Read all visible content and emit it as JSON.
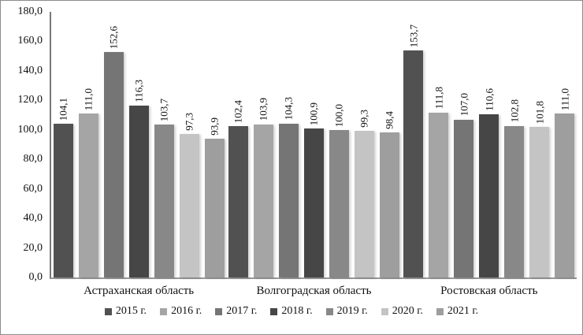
{
  "chart_data": {
    "type": "bar",
    "title": "",
    "xlabel": "",
    "ylabel": "",
    "categories": [
      "Астраханская область",
      "Волгоградская область",
      "Ростовская область"
    ],
    "series": [
      {
        "name": "2015 г.",
        "color": "#515151",
        "values": [
          104.1,
          102.4,
          153.7
        ]
      },
      {
        "name": "2016 г.",
        "color": "#a5a5a5",
        "values": [
          111.0,
          103.9,
          111.8
        ]
      },
      {
        "name": "2017 г.",
        "color": "#757575",
        "values": [
          152.6,
          104.3,
          107.0
        ]
      },
      {
        "name": "2018 г.",
        "color": "#464646",
        "values": [
          116.3,
          100.9,
          110.6
        ]
      },
      {
        "name": "2019 г.",
        "color": "#888888",
        "values": [
          103.7,
          100.0,
          102.8
        ]
      },
      {
        "name": "2020 г.",
        "color": "#c4c4c4",
        "values": [
          97.3,
          99.3,
          101.8
        ]
      },
      {
        "name": "2021 г.",
        "color": "#9e9e9e",
        "values": [
          93.9,
          98.4,
          111.0
        ]
      }
    ],
    "ylim": [
      0,
      180
    ],
    "ytick_step": 20,
    "ytick_labels": [
      "0,0",
      "20,0",
      "40,0",
      "60,0",
      "80,0",
      "100,0",
      "120,0",
      "140,0",
      "160,0",
      "180,0"
    ],
    "value_labels_visible": true,
    "value_label_rotation_deg": 90,
    "decimal_separator": ",",
    "grid": false,
    "legend_position": "bottom",
    "axis_color": "#787878",
    "baseline_color": "#999999"
  }
}
